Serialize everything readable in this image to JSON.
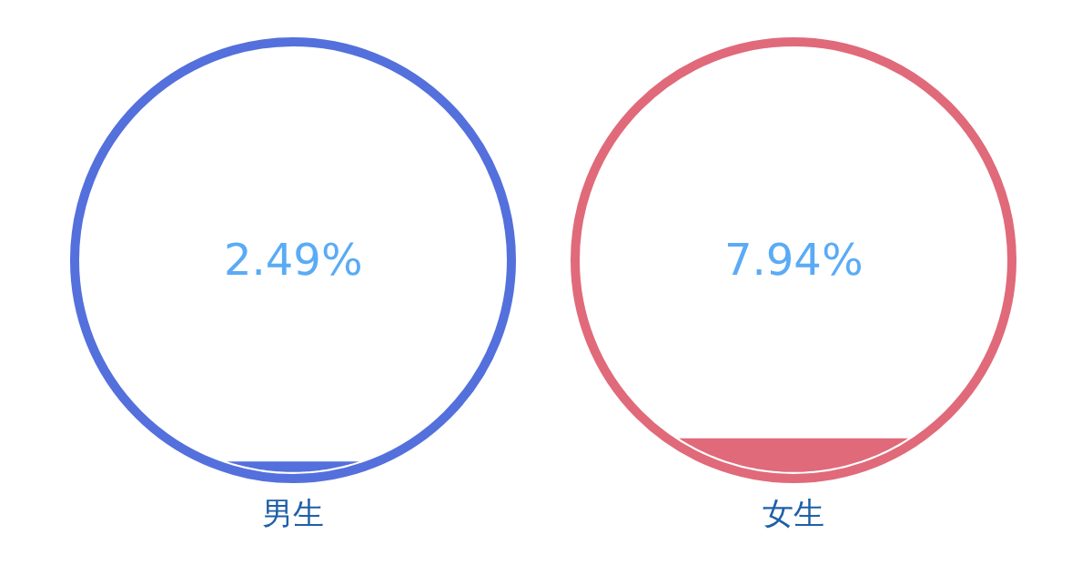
{
  "chart_data": [
    {
      "type": "other",
      "categories": [
        "男生"
      ],
      "values": [
        2.49
      ],
      "value_labels": [
        "2.49%"
      ],
      "colors": [
        "#5470dc"
      ]
    },
    {
      "type": "other",
      "categories": [
        "女生"
      ],
      "values": [
        7.94
      ],
      "value_labels": [
        "7.94%"
      ],
      "colors": [
        "#e06a7a"
      ]
    }
  ]
}
